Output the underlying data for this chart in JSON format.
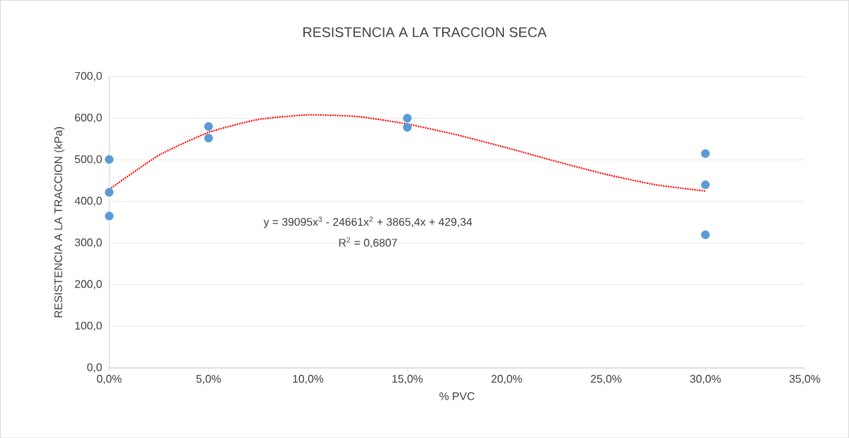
{
  "chart_data": {
    "type": "scatter",
    "title": "RESISTENCIA A LA TRACCION SECA",
    "xlabel": "% PVC",
    "ylabel": "RESISTENCIA A LA TRACCION  (kPa)",
    "annotations": [
      "y = 39095x$^{3}$ - 24661x$^{2}$ + 3865,4x + 429,34",
      "R$^{2}$ = 0,6807"
    ],
    "xlim": [
      0,
      0.35
    ],
    "xticks": [
      {
        "value": 0,
        "label": "0,0%"
      },
      {
        "value": 0.05,
        "label": "5,0%"
      },
      {
        "value": 0.1,
        "label": "10,0%"
      },
      {
        "value": 0.15,
        "label": "15,0%"
      },
      {
        "value": 0.2,
        "label": "20,0%"
      },
      {
        "value": 0.25,
        "label": "25,0%"
      },
      {
        "value": 0.3,
        "label": "30,0%"
      },
      {
        "value": 0.35,
        "label": "35,0%"
      }
    ],
    "ylim": [
      0,
      700
    ],
    "yticks": [
      {
        "value": 0,
        "label": "0,0"
      },
      {
        "value": 100,
        "label": "100,0"
      },
      {
        "value": 200,
        "label": "200,0"
      },
      {
        "value": 300,
        "label": "300,0"
      },
      {
        "value": 400,
        "label": "400,0"
      },
      {
        "value": 500,
        "label": "500,0"
      },
      {
        "value": 600,
        "label": "600,0"
      },
      {
        "value": 700,
        "label": "700,0"
      }
    ],
    "grid": "y",
    "series": [
      {
        "color": "#5b9bd5",
        "marker": "circle",
        "x": [
          0,
          0,
          0,
          0.05,
          0.05,
          0.15,
          0.15,
          0.3,
          0.3,
          0.3
        ],
        "values": [
          501,
          422,
          365,
          580,
          552,
          600,
          578,
          515,
          440,
          320
        ]
      },
      {
        "type": "line",
        "color": "#ff0000",
        "marker": "none",
        "line_style": "dotted",
        "x": [
          0,
          0.025,
          0.05,
          0.075,
          0.1,
          0.125,
          0.15,
          0.175,
          0.2,
          0.225,
          0.25,
          0.275,
          0.3
        ],
        "values": [
          429,
          511,
          566,
          597,
          608,
          604,
          586,
          560,
          529,
          496,
          465,
          440,
          425
        ]
      }
    ]
  }
}
